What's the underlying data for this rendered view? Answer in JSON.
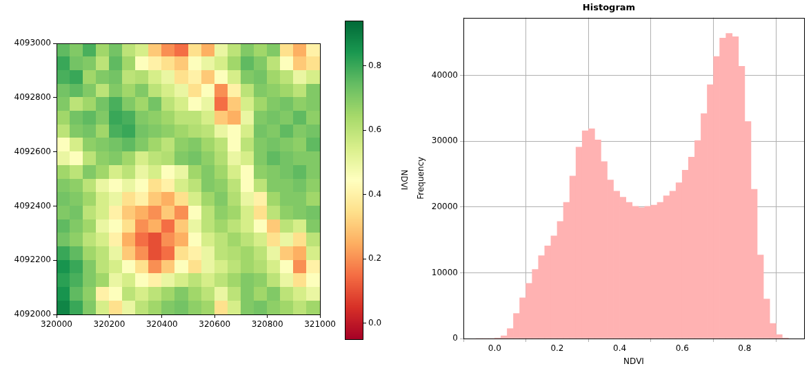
{
  "chart_data": [
    {
      "type": "heatmap",
      "xlim": [
        320000,
        321000
      ],
      "ylim": [
        4092000,
        4093000
      ],
      "xticks": [
        320000,
        320200,
        320400,
        320600,
        320800,
        321000
      ],
      "yticks": [
        4092000,
        4092200,
        4092400,
        4092600,
        4092800,
        4093000
      ],
      "cells": [
        [
          0.75,
          0.7,
          0.78,
          0.65,
          0.72,
          0.6,
          0.55,
          0.3,
          0.2,
          0.15,
          0.35,
          0.25,
          0.5,
          0.6,
          0.7,
          0.65,
          0.7,
          0.35,
          0.25,
          0.4
        ],
        [
          0.8,
          0.72,
          0.7,
          0.6,
          0.75,
          0.65,
          0.45,
          0.4,
          0.35,
          0.3,
          0.45,
          0.5,
          0.55,
          0.65,
          0.75,
          0.7,
          0.6,
          0.45,
          0.3,
          0.35
        ],
        [
          0.78,
          0.8,
          0.65,
          0.7,
          0.72,
          0.6,
          0.62,
          0.55,
          0.5,
          0.35,
          0.4,
          0.3,
          0.45,
          0.55,
          0.7,
          0.72,
          0.65,
          0.6,
          0.5,
          0.55
        ],
        [
          0.72,
          0.75,
          0.7,
          0.6,
          0.7,
          0.65,
          0.7,
          0.6,
          0.55,
          0.5,
          0.35,
          0.45,
          0.2,
          0.4,
          0.6,
          0.7,
          0.68,
          0.65,
          0.6,
          0.7
        ],
        [
          0.7,
          0.6,
          0.65,
          0.72,
          0.78,
          0.7,
          0.65,
          0.72,
          0.6,
          0.55,
          0.45,
          0.5,
          0.15,
          0.3,
          0.55,
          0.65,
          0.7,
          0.72,
          0.68,
          0.7
        ],
        [
          0.65,
          0.72,
          0.75,
          0.7,
          0.8,
          0.78,
          0.7,
          0.68,
          0.65,
          0.6,
          0.6,
          0.55,
          0.3,
          0.25,
          0.5,
          0.7,
          0.72,
          0.7,
          0.75,
          0.68
        ],
        [
          0.6,
          0.7,
          0.72,
          0.65,
          0.78,
          0.8,
          0.72,
          0.7,
          0.68,
          0.65,
          0.62,
          0.6,
          0.5,
          0.45,
          0.55,
          0.72,
          0.7,
          0.75,
          0.7,
          0.72
        ],
        [
          0.45,
          0.55,
          0.68,
          0.7,
          0.72,
          0.75,
          0.7,
          0.65,
          0.6,
          0.68,
          0.7,
          0.65,
          0.6,
          0.45,
          0.6,
          0.7,
          0.72,
          0.7,
          0.68,
          0.75
        ],
        [
          0.5,
          0.45,
          0.6,
          0.68,
          0.7,
          0.65,
          0.55,
          0.6,
          0.62,
          0.7,
          0.72,
          0.68,
          0.62,
          0.5,
          0.55,
          0.7,
          0.75,
          0.72,
          0.7,
          0.7
        ],
        [
          0.65,
          0.6,
          0.7,
          0.65,
          0.55,
          0.6,
          0.5,
          0.55,
          0.45,
          0.5,
          0.65,
          0.7,
          0.65,
          0.55,
          0.45,
          0.68,
          0.7,
          0.72,
          0.75,
          0.7
        ],
        [
          0.7,
          0.68,
          0.6,
          0.5,
          0.45,
          0.5,
          0.45,
          0.35,
          0.4,
          0.55,
          0.6,
          0.7,
          0.68,
          0.6,
          0.45,
          0.6,
          0.7,
          0.7,
          0.72,
          0.68
        ],
        [
          0.72,
          0.7,
          0.65,
          0.55,
          0.5,
          0.35,
          0.4,
          0.3,
          0.25,
          0.35,
          0.55,
          0.65,
          0.7,
          0.62,
          0.5,
          0.4,
          0.65,
          0.7,
          0.7,
          0.65
        ],
        [
          0.7,
          0.72,
          0.6,
          0.55,
          0.4,
          0.3,
          0.25,
          0.2,
          0.3,
          0.2,
          0.45,
          0.6,
          0.68,
          0.65,
          0.55,
          0.35,
          0.6,
          0.68,
          0.7,
          0.72
        ],
        [
          0.75,
          0.7,
          0.65,
          0.5,
          0.45,
          0.35,
          0.2,
          0.25,
          0.15,
          0.3,
          0.5,
          0.6,
          0.65,
          0.6,
          0.55,
          0.45,
          0.3,
          0.6,
          0.55,
          0.7
        ],
        [
          0.72,
          0.68,
          0.6,
          0.55,
          0.4,
          0.25,
          0.15,
          0.1,
          0.2,
          0.25,
          0.45,
          0.55,
          0.6,
          0.65,
          0.6,
          0.55,
          0.35,
          0.5,
          0.35,
          0.6
        ],
        [
          0.8,
          0.75,
          0.65,
          0.6,
          0.5,
          0.3,
          0.2,
          0.1,
          0.15,
          0.35,
          0.4,
          0.5,
          0.6,
          0.62,
          0.65,
          0.6,
          0.5,
          0.3,
          0.25,
          0.55
        ],
        [
          0.85,
          0.8,
          0.7,
          0.6,
          0.55,
          0.45,
          0.35,
          0.2,
          0.3,
          0.45,
          0.35,
          0.5,
          0.55,
          0.6,
          0.65,
          0.62,
          0.55,
          0.45,
          0.2,
          0.4
        ],
        [
          0.82,
          0.78,
          0.7,
          0.65,
          0.5,
          0.55,
          0.45,
          0.4,
          0.5,
          0.55,
          0.6,
          0.55,
          0.6,
          0.65,
          0.7,
          0.68,
          0.6,
          0.5,
          0.35,
          0.45
        ],
        [
          0.85,
          0.75,
          0.68,
          0.4,
          0.45,
          0.6,
          0.55,
          0.6,
          0.65,
          0.7,
          0.65,
          0.6,
          0.5,
          0.6,
          0.7,
          0.65,
          0.7,
          0.6,
          0.55,
          0.5
        ],
        [
          0.88,
          0.8,
          0.7,
          0.55,
          0.35,
          0.5,
          0.6,
          0.65,
          0.7,
          0.72,
          0.68,
          0.65,
          0.35,
          0.55,
          0.7,
          0.72,
          0.68,
          0.65,
          0.6,
          0.65
        ]
      ],
      "colorbar": {
        "label": "NDVI",
        "range": [
          -0.05,
          0.94
        ],
        "ticks": [
          {
            "value": 0,
            "label": "0.0"
          },
          0.2,
          0.4,
          0.6,
          0.8
        ]
      },
      "grid": false
    },
    {
      "type": "histogram",
      "title": "Histogram",
      "x_label": "NDVI",
      "y_label": "Frequency",
      "bins": [
        -0.06,
        -0.04,
        -0.02,
        0,
        0.02,
        0.04,
        0.06,
        0.08,
        0.1,
        0.12,
        0.14,
        0.16,
        0.18,
        0.2,
        0.22,
        0.24,
        0.26,
        0.28,
        0.3,
        0.32,
        0.34,
        0.36,
        0.38,
        0.4,
        0.42,
        0.44,
        0.46,
        0.48,
        0.5,
        0.52,
        0.54,
        0.56,
        0.58,
        0.6,
        0.62,
        0.64,
        0.66,
        0.68,
        0.7,
        0.72,
        0.74,
        0.76,
        0.78,
        0.8,
        0.82,
        0.84,
        0.86,
        0.88,
        0.9,
        0.92,
        0.94
      ],
      "values": [
        0,
        0,
        0,
        100,
        400,
        1500,
        3800,
        6200,
        8400,
        10500,
        12600,
        14100,
        15600,
        17800,
        20700,
        24700,
        29100,
        31600,
        31900,
        30200,
        26900,
        24100,
        22400,
        21500,
        20700,
        20100,
        19900,
        20100,
        20300,
        20700,
        21700,
        22400,
        23700,
        25600,
        27600,
        30100,
        34200,
        38600,
        42900,
        45700,
        46400,
        45900,
        41400,
        33000,
        22700,
        12700,
        6000,
        2300,
        600,
        100
      ],
      "color": "#ffb2b2",
      "xlim": [
        -0.1,
        0.99
      ],
      "ylim": [
        0,
        48800
      ],
      "xticks": [
        {
          "value": 0,
          "label": "0.0"
        },
        0.2,
        0.4,
        0.6,
        0.8
      ],
      "yticks": [
        0,
        10000,
        20000,
        30000,
        40000
      ],
      "grid": true
    }
  ]
}
